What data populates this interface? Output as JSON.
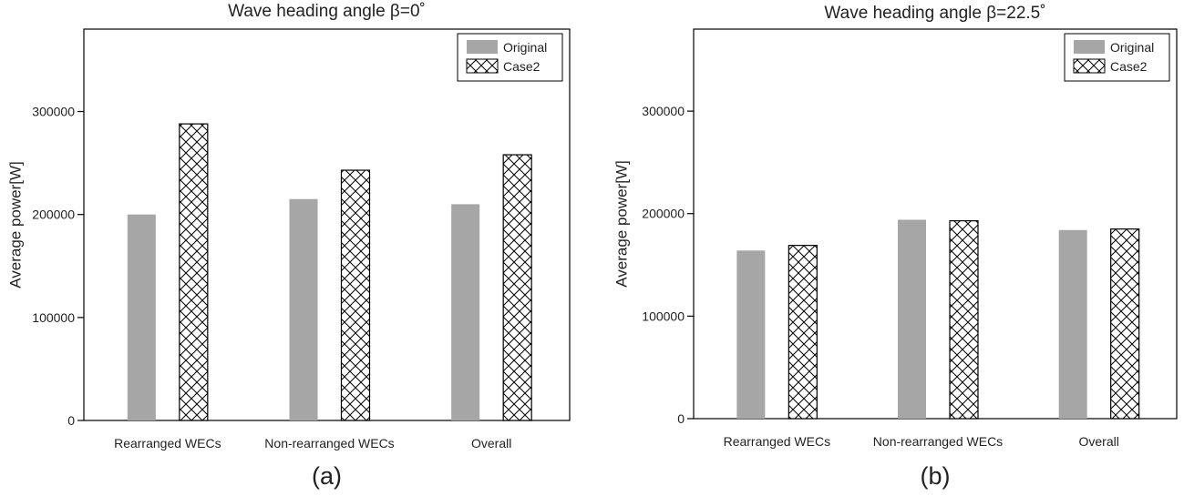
{
  "chart_data": [
    {
      "type": "bar",
      "title": "Wave heading angle β=0˚",
      "panel_label": "(a)",
      "ylabel": "Average power[W]",
      "xlabel": "",
      "categories": [
        "Rearranged WECs",
        "Non-rearranged WECs",
        "Overall"
      ],
      "series": [
        {
          "name": "Original",
          "values": [
            200000,
            215000,
            210000
          ],
          "color": "#a6a6a6",
          "pattern": "solid"
        },
        {
          "name": "Case2",
          "values": [
            288000,
            243000,
            258000
          ],
          "color": "#ffffff",
          "pattern": "crosshatch"
        }
      ],
      "ylim": [
        0,
        380000
      ],
      "yticks": [
        0,
        100000,
        200000,
        300000
      ],
      "ytick_labels": [
        "0",
        "100000",
        "200000",
        "300000"
      ],
      "grid": false,
      "legend_position": "top-right"
    },
    {
      "type": "bar",
      "title": "Wave heading angle β=22.5˚",
      "panel_label": "(b)",
      "ylabel": "Average power[W]",
      "xlabel": "",
      "categories": [
        "Rearranged WECs",
        "Non-rearranged WECs",
        "Overall"
      ],
      "series": [
        {
          "name": "Original",
          "values": [
            164000,
            194000,
            184000
          ],
          "color": "#a6a6a6",
          "pattern": "solid"
        },
        {
          "name": "Case2",
          "values": [
            169000,
            193000,
            185000
          ],
          "color": "#ffffff",
          "pattern": "crosshatch"
        }
      ],
      "ylim": [
        0,
        380000
      ],
      "yticks": [
        0,
        100000,
        200000,
        300000
      ],
      "ytick_labels": [
        "0",
        "100000",
        "200000",
        "300000"
      ],
      "grid": false,
      "legend_position": "top-right"
    }
  ]
}
